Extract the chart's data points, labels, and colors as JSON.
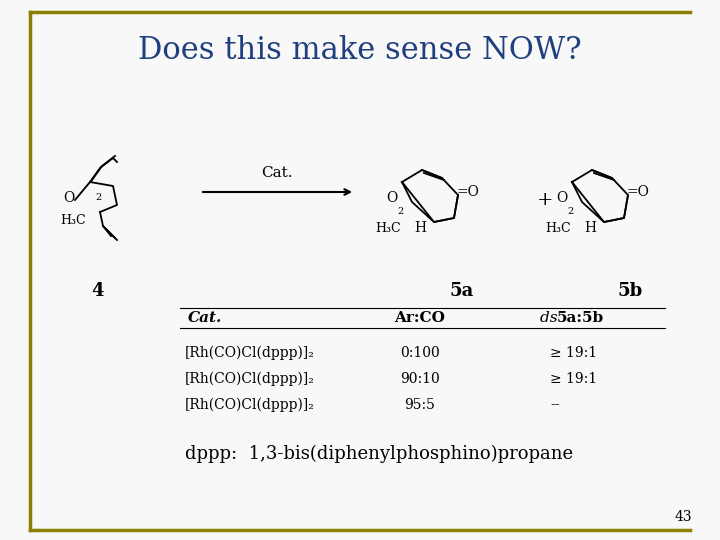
{
  "title": "Does this make sense NOW?",
  "title_color": "#1F3F7F",
  "title_fontsize": 22,
  "slide_bg": "#F8F8F8",
  "border_color": "#8B8000",
  "footnote": "dppp:  1,3-bis(diphenylphosphino)propane",
  "footnote_fontsize": 13,
  "page_number": "43",
  "arrow_label": "Cat.",
  "table_headers": [
    "Cat.",
    "Ar:CO",
    "ds 5a:5b"
  ],
  "table_rows": [
    [
      "[Rh(CO)Cl(dppp)]₂",
      "0:100",
      "≥ 19:1"
    ],
    [
      "[Rh(CO)Cl(dppp)]₂",
      "90:10",
      "≥ 19:1"
    ],
    [
      "[Rh(CO)Cl(dppp)]₂",
      "95:5",
      "--"
    ]
  ],
  "compound_labels": [
    "4",
    "5a",
    "5b"
  ]
}
